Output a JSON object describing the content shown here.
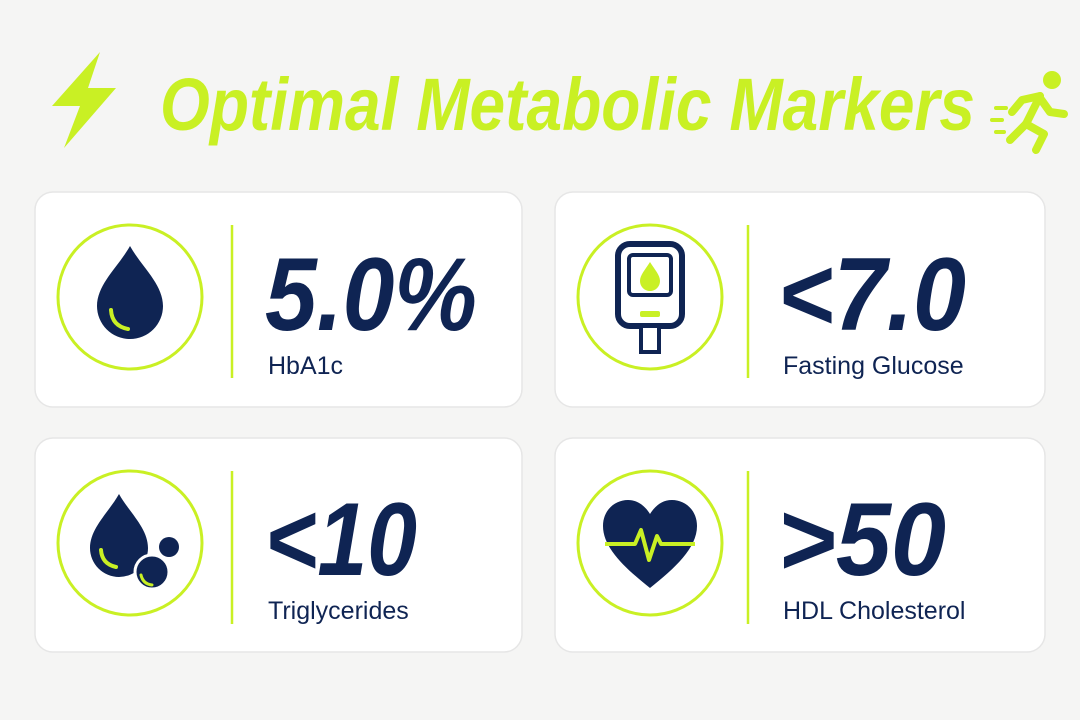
{
  "header": {
    "title": "Optimal Metabolic Markers"
  },
  "cards": [
    {
      "value": "5.0%",
      "label": "HbA1c"
    },
    {
      "value": "<7.0",
      "label": "Fasting Glucose"
    },
    {
      "value": "<10",
      "label": "Triglycerides"
    },
    {
      "value": ">50",
      "label": "HDL Cholesterol"
    }
  ]
}
